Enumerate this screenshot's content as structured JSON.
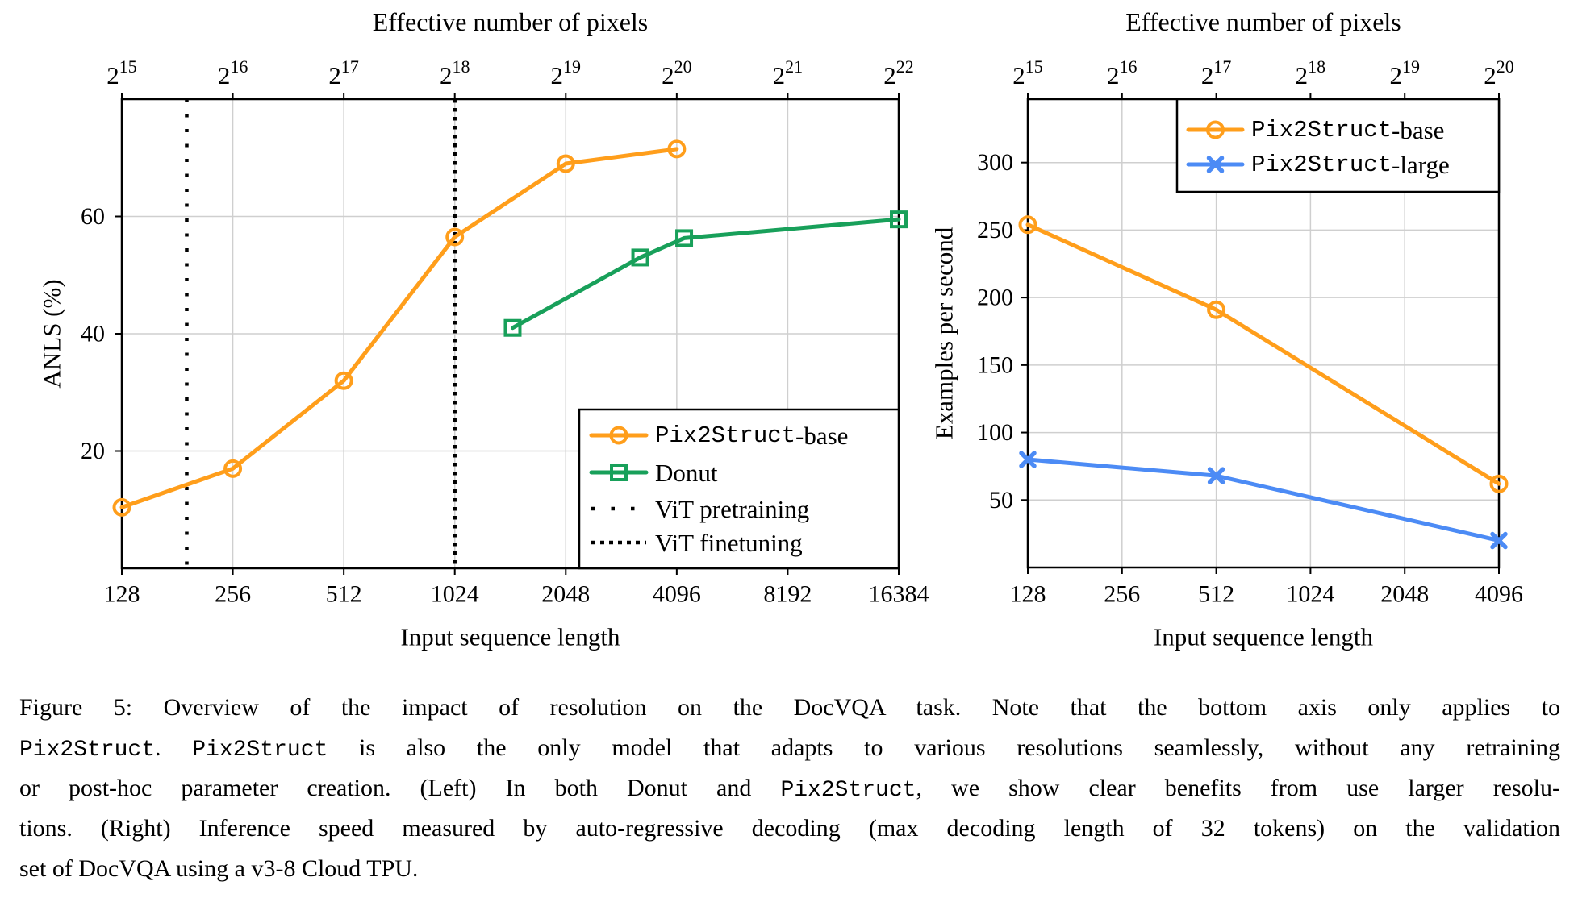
{
  "figure": {
    "caption": {
      "lines": [
        {
          "justify": true,
          "segments": [
            {
              "mono": false,
              "text": "Figure 5:  Overview of the impact of resolution on the DocVQA task.  Note that the bottom axis only applies to"
            }
          ]
        },
        {
          "justify": true,
          "segments": [
            {
              "mono": true,
              "text": "Pix2Struct"
            },
            {
              "mono": false,
              "text": ". "
            },
            {
              "mono": true,
              "text": "Pix2Struct"
            },
            {
              "mono": false,
              "text": " is also the only model that adapts to various resolutions seamlessly, without any retraining"
            }
          ]
        },
        {
          "justify": true,
          "segments": [
            {
              "mono": false,
              "text": "or post-hoc parameter creation.  (Left) In both Donut and "
            },
            {
              "mono": true,
              "text": "Pix2Struct"
            },
            {
              "mono": false,
              "text": ", we show clear benefits from use larger resolu-"
            }
          ]
        },
        {
          "justify": true,
          "segments": [
            {
              "mono": false,
              "text": "tions. (Right) Inference speed measured by auto-regressive decoding (max decoding length of 32 tokens) on the validation"
            }
          ]
        },
        {
          "justify": false,
          "segments": [
            {
              "mono": false,
              "text": "set of DocVQA using a v3-8 Cloud TPU."
            }
          ]
        }
      ]
    }
  },
  "chart_data": [
    {
      "type": "line",
      "title": "Effective number of pixels",
      "xlabel": "Input sequence length",
      "ylabel": "ANLS (%)",
      "xscale": "log2",
      "grid": true,
      "x_ticks": [
        128,
        256,
        512,
        1024,
        2048,
        4096,
        8192,
        16384
      ],
      "top_axis_exponent_base": "2",
      "top_axis_exponents": [
        15,
        16,
        17,
        18,
        19,
        20,
        21,
        22
      ],
      "y_ticks": [
        20,
        40,
        60
      ],
      "ylim": [
        0,
        80
      ],
      "series": [
        {
          "name": "Pix2Struct-base",
          "label_mono": "Pix2Struct",
          "label_rest": "-base",
          "color": "#FF9E1B",
          "marker": "circle",
          "points": [
            [
              128,
              10.4
            ],
            [
              256,
              17
            ],
            [
              512,
              32
            ],
            [
              1024,
              56.5
            ],
            [
              2048,
              69
            ],
            [
              4096,
              71.5
            ]
          ]
        },
        {
          "name": "Donut",
          "label_mono": "",
          "label_rest": "Donut",
          "color": "#18A05A",
          "marker": "square",
          "points": [
            [
              1470,
              41
            ],
            [
              3260,
              53
            ],
            [
              4290,
              56.3
            ],
            [
              16384,
              59.5
            ]
          ]
        }
      ],
      "vlines": [
        {
          "name": "ViT pretraining",
          "x": 192,
          "style": "sparse-dotted",
          "color": "#000000"
        },
        {
          "name": "ViT finetuning",
          "x": 1024,
          "style": "dense-dotted",
          "color": "#000000"
        }
      ],
      "legend_position": "lower right"
    },
    {
      "type": "line",
      "title": "Effective number of pixels",
      "xlabel": "Input sequence length",
      "ylabel": "Examples per second",
      "xscale": "log2",
      "grid": true,
      "x_ticks": [
        128,
        256,
        512,
        1024,
        2048,
        4096
      ],
      "top_axis_exponent_base": "2",
      "top_axis_exponents": [
        15,
        16,
        17,
        18,
        19,
        20
      ],
      "y_ticks": [
        50,
        100,
        150,
        200,
        250,
        300
      ],
      "ylim": [
        0,
        347
      ],
      "series": [
        {
          "name": "Pix2Struct-base",
          "label_mono": "Pix2Struct",
          "label_rest": "-base",
          "color": "#FF9E1B",
          "marker": "circle",
          "points": [
            [
              128,
              254
            ],
            [
              512,
              191
            ],
            [
              4096,
              62
            ]
          ]
        },
        {
          "name": "Pix2Struct-large",
          "label_mono": "Pix2Struct",
          "label_rest": "-large",
          "color": "#4C8BF5",
          "marker": "x",
          "points": [
            [
              128,
              80
            ],
            [
              512,
              68
            ],
            [
              4096,
              20
            ]
          ]
        }
      ],
      "vlines": [],
      "legend_position": "upper right"
    }
  ]
}
